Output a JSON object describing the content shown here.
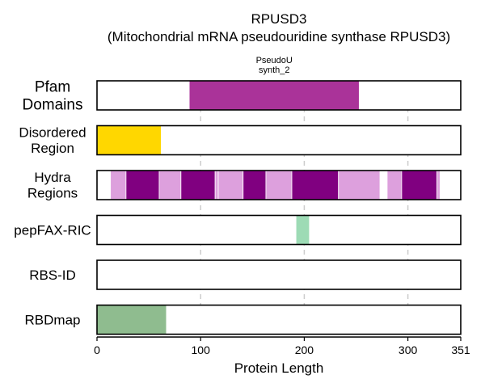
{
  "chart_data": {
    "type": "domain-track",
    "title": "RPUSD3",
    "subtitle": "(Mitochondrial mRNA pseudouridine synthase RPUSD3)",
    "xlabel": "Protein Length",
    "xlim": [
      0,
      351
    ],
    "xticks": [
      0,
      100,
      200,
      300,
      351
    ],
    "grid_x": [
      100,
      200,
      300
    ],
    "tracks": [
      {
        "label": [
          "Pfam",
          "Domains"
        ],
        "segments": [
          {
            "start": 89,
            "end": 253,
            "color": "#aa3399",
            "label": [
              "PseudoU",
              "synth_2"
            ]
          }
        ]
      },
      {
        "label": [
          "Disordered",
          "Region"
        ],
        "segments": [
          {
            "start": 0,
            "end": 62,
            "color": "#ffd700"
          }
        ]
      },
      {
        "label": [
          "Hydra",
          "Regions"
        ],
        "segments": [
          {
            "start": 13,
            "end": 28,
            "color": "#dda0dd"
          },
          {
            "start": 28,
            "end": 60,
            "color": "#800080"
          },
          {
            "start": 60,
            "end": 81,
            "color": "#dda0dd"
          },
          {
            "start": 81,
            "end": 114,
            "color": "#800080"
          },
          {
            "start": 114,
            "end": 117,
            "color": "#dda0dd"
          },
          {
            "start": 117,
            "end": 141,
            "color": "#dda0dd"
          },
          {
            "start": 141,
            "end": 163,
            "color": "#800080"
          },
          {
            "start": 163,
            "end": 188,
            "color": "#dda0dd"
          },
          {
            "start": 188,
            "end": 233,
            "color": "#800080"
          },
          {
            "start": 233,
            "end": 273,
            "color": "#dda0dd"
          },
          {
            "start": 280,
            "end": 294,
            "color": "#dda0dd"
          },
          {
            "start": 294,
            "end": 328,
            "color": "#800080"
          },
          {
            "start": 328,
            "end": 331,
            "color": "#dda0dd"
          }
        ]
      },
      {
        "label": [
          "pepFAX-RIC"
        ],
        "segments": [
          {
            "start": 192,
            "end": 205,
            "color": "#9ddbb5"
          }
        ]
      },
      {
        "label": [
          "RBS-ID"
        ],
        "segments": []
      },
      {
        "label": [
          "RBDmap"
        ],
        "segments": [
          {
            "start": 0,
            "end": 67,
            "color": "#8fbc8f"
          }
        ]
      }
    ]
  }
}
